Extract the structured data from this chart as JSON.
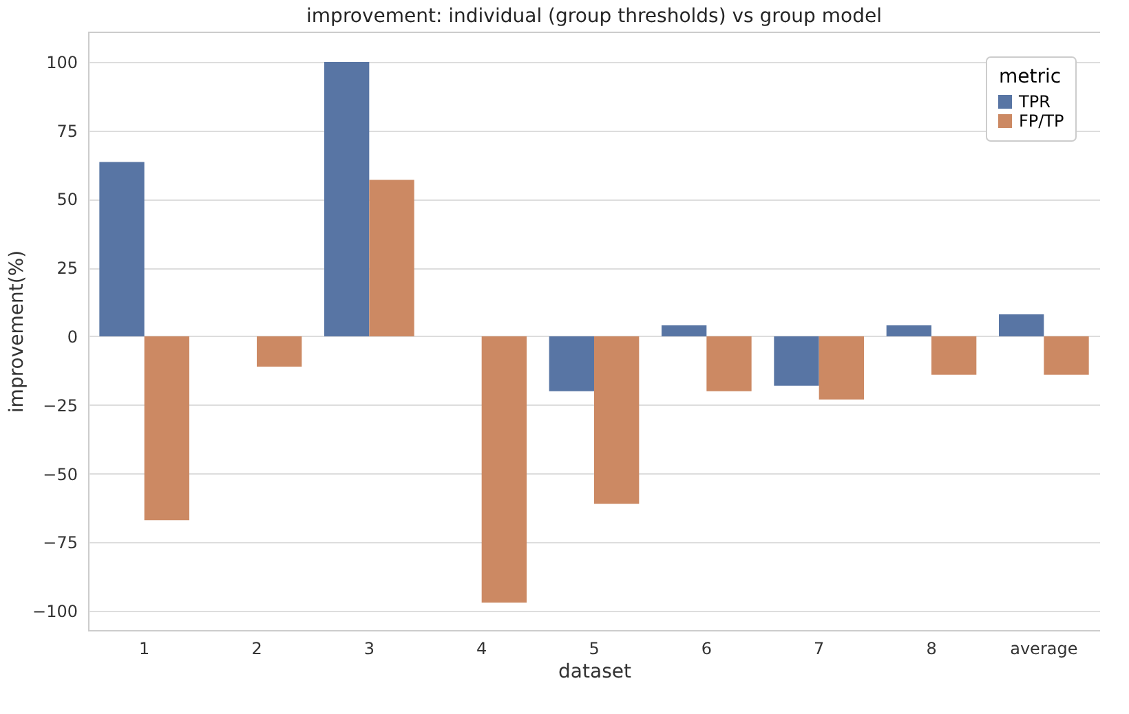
{
  "chart_data": {
    "type": "bar",
    "title": "improvement: individual (group thresholds)  vs  group model",
    "xlabel": "dataset",
    "ylabel": "improvement(%)",
    "legend_title": "metric",
    "categories": [
      "1",
      "2",
      "3",
      "4",
      "5",
      "6",
      "7",
      "8",
      "average"
    ],
    "series": [
      {
        "name": "TPR",
        "color": "#5875a4",
        "values": [
          63.5,
          0,
          100,
          0,
          -20,
          4,
          -18,
          4,
          8
        ]
      },
      {
        "name": "FP/TP",
        "color": "#cc8963",
        "values": [
          -67,
          -11,
          57,
          -97,
          -61,
          -20,
          -23,
          -14,
          -14
        ]
      }
    ],
    "ylim": [
      -107,
      111
    ],
    "yticks": [
      -100,
      -75,
      -50,
      -25,
      0,
      25,
      50,
      75,
      100
    ],
    "grid": "y",
    "legend": "top right"
  }
}
